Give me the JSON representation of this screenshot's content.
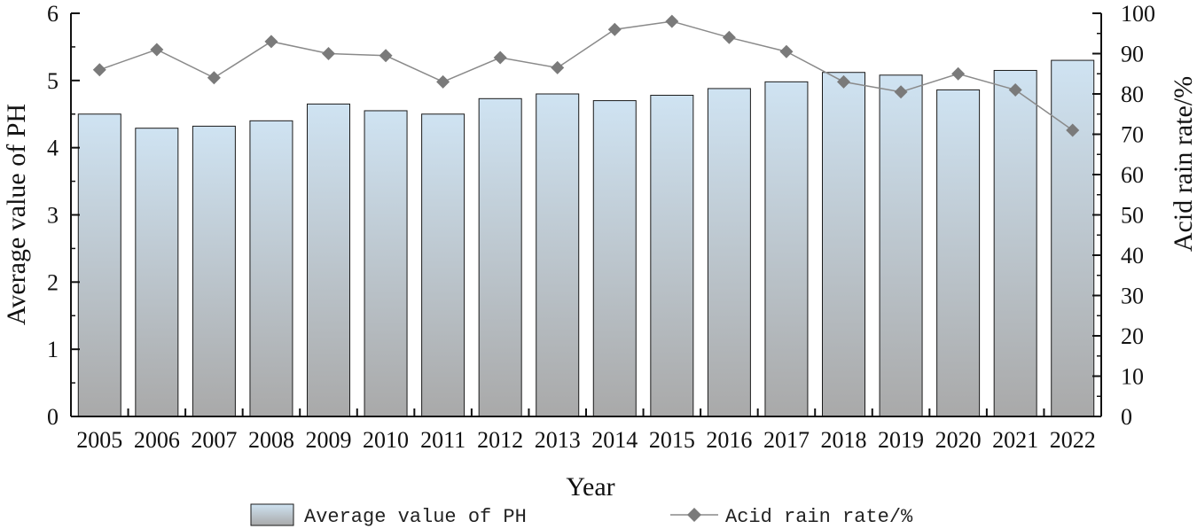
{
  "chart_data": {
    "type": "bar",
    "categories": [
      "2005",
      "2006",
      "2007",
      "2008",
      "2009",
      "2010",
      "2011",
      "2012",
      "2013",
      "2014",
      "2015",
      "2016",
      "2017",
      "2018",
      "2019",
      "2020",
      "2021",
      "2022"
    ],
    "series": [
      {
        "name": "Average value of PH",
        "type": "bar",
        "axis": "left",
        "values": [
          4.5,
          4.29,
          4.32,
          4.4,
          4.65,
          4.55,
          4.5,
          4.73,
          4.8,
          4.7,
          4.78,
          4.88,
          4.98,
          5.12,
          5.08,
          4.86,
          5.15,
          5.3
        ]
      },
      {
        "name": "Acid rain rate/%",
        "type": "line",
        "axis": "right",
        "values": [
          86,
          91,
          84,
          93,
          90,
          89.5,
          83,
          89,
          86.5,
          96,
          98,
          94,
          90.5,
          83,
          80.5,
          85,
          81,
          71
        ]
      }
    ],
    "title": "",
    "xlabel": "Year",
    "ylabel": "Average value of PH",
    "ylabel_right": "Acid rain rate/%",
    "ylim": [
      0,
      6
    ],
    "ylim_right": [
      0,
      100
    ],
    "yticks": [
      "0",
      "1",
      "2",
      "3",
      "4",
      "5",
      "6"
    ],
    "yticks_right": [
      "0",
      "10",
      "20",
      "30",
      "40",
      "50",
      "60",
      "70",
      "80",
      "90",
      "100"
    ],
    "grid": false,
    "legend": {
      "position": "bottom",
      "entries": [
        "Average value of PH",
        "Acid rain rate/%"
      ]
    },
    "colors": {
      "bar_top": "#cfe3f2",
      "bar_bottom": "#a9a9a9",
      "bar_stroke": "#1a1a1a",
      "line": "#8a8a8a",
      "marker": "#7a7a7a",
      "axis": "#111111"
    }
  }
}
